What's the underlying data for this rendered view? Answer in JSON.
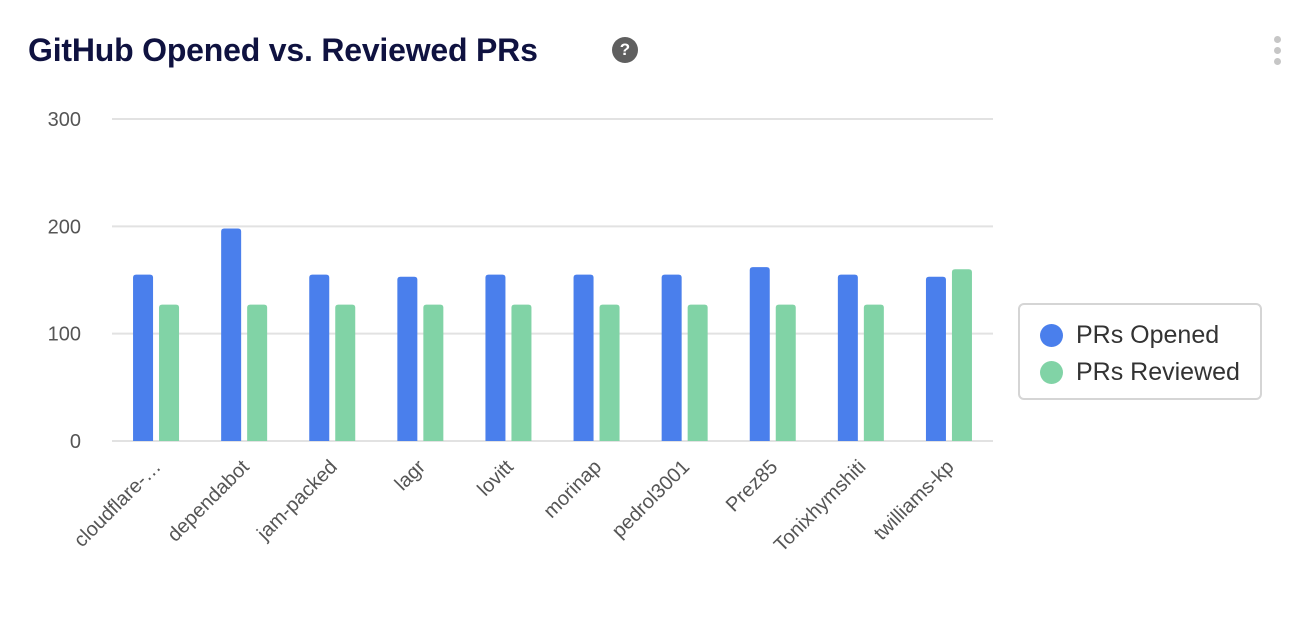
{
  "card": {
    "title": "GitHub Opened vs. Reviewed PRs",
    "help_glyph": "?",
    "help_icon": "question-circle-icon",
    "menu_icon": "more-vertical-icon"
  },
  "colors": {
    "title": "#0f1240",
    "series_opened": "#4a7fec",
    "series_reviewed": "#81d3a6",
    "grid": "#e2e2e2",
    "axis_text": "#555555"
  },
  "chart_data": {
    "type": "bar",
    "title": "GitHub Opened vs. Reviewed PRs",
    "xlabel": "",
    "ylabel": "",
    "ylim": [
      0,
      300
    ],
    "yticks": [
      0,
      100,
      200,
      300
    ],
    "grid": true,
    "legend_position": "right",
    "categories": [
      "cloudflare-…",
      "dependabot",
      "jam-packed",
      "lagr",
      "lovitt",
      "morinap",
      "pedrol3001",
      "Prez85",
      "Tonixhymshiti",
      "twilliams-kp"
    ],
    "series": [
      {
        "name": "PRs Opened",
        "color": "#4a7fec",
        "values": [
          155,
          198,
          155,
          153,
          155,
          155,
          155,
          162,
          155,
          153
        ]
      },
      {
        "name": "PRs Reviewed",
        "color": "#81d3a6",
        "values": [
          127,
          127,
          127,
          127,
          127,
          127,
          127,
          127,
          127,
          160
        ]
      }
    ]
  }
}
